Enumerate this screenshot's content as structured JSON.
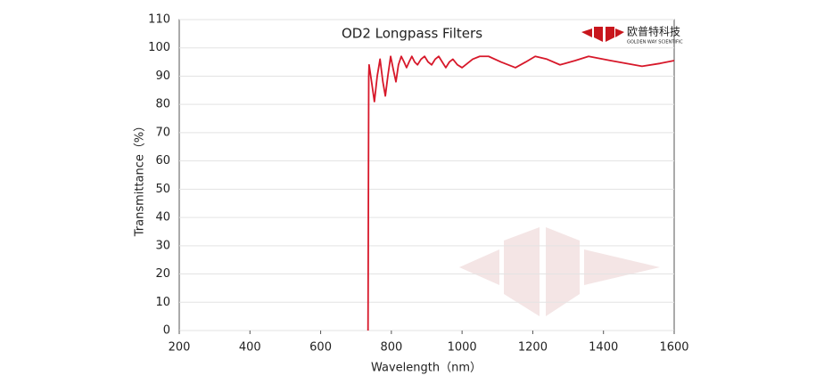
{
  "chart_data": {
    "type": "line",
    "title": "OD2  Longpass Filters",
    "x_label": "Wavelength（nm）",
    "y_label": "Transmittance（%）",
    "logo_text": "欧普特科技",
    "logo_subtext": "GOLDEN WAY SCIENTIFIC",
    "x": [
      734,
      736,
      737,
      744,
      752,
      760,
      768,
      776,
      783,
      790,
      798,
      806,
      813,
      820,
      828,
      836,
      843,
      850,
      858,
      866,
      874,
      884,
      894,
      904,
      914,
      924,
      934,
      944,
      954,
      964,
      974,
      987,
      1000,
      1015,
      1030,
      1050,
      1075,
      1110,
      1151,
      1180,
      1207,
      1240,
      1277,
      1320,
      1358,
      1420,
      1509,
      1560,
      1600
    ],
    "series": [
      {
        "name": "OD2 Longpass",
        "color": "#d7182a",
        "values": [
          0,
          90,
          94,
          88,
          81,
          90,
          96,
          88,
          83,
          90,
          97,
          92,
          88,
          94,
          97,
          95,
          93,
          95,
          97,
          95,
          94,
          96,
          97,
          95,
          94,
          96,
          97,
          95,
          93,
          95,
          96,
          94,
          93,
          94.5,
          96,
          97,
          97,
          95,
          93,
          95,
          97,
          96,
          94,
          95.5,
          97,
          95.5,
          93.5,
          94.5,
          95.5
        ]
      }
    ],
    "xlim": [
      200,
      1600
    ],
    "xticks": [
      200,
      400,
      600,
      800,
      1000,
      1200,
      1400,
      1600
    ],
    "ylim": [
      0,
      110
    ],
    "yticks": [
      0,
      10,
      20,
      30,
      40,
      50,
      60,
      70,
      80,
      90,
      100,
      110
    ],
    "grid": true
  }
}
